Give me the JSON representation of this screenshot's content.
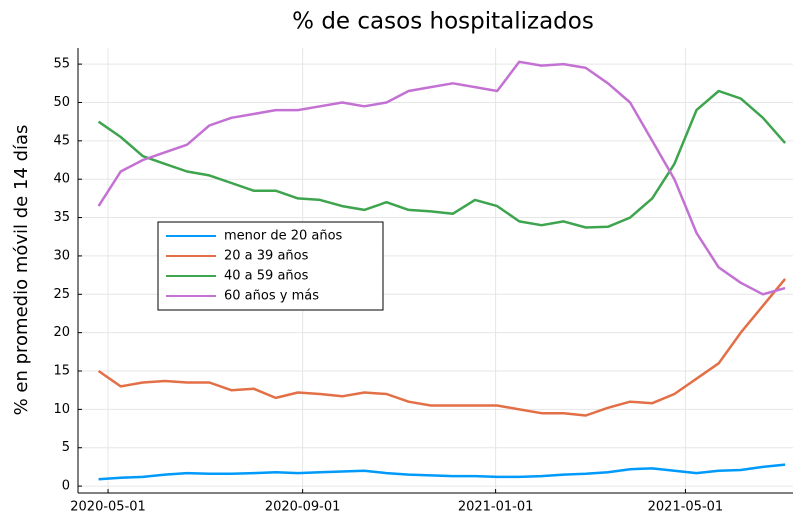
{
  "chart_data": {
    "type": "line",
    "title": "% de casos hospitalizados",
    "y_label": "% en promedio móvil de 14 días",
    "x": [
      "2020-04-25",
      "2020-05-09",
      "2020-05-23",
      "2020-06-06",
      "2020-06-20",
      "2020-07-04",
      "2020-07-18",
      "2020-08-01",
      "2020-08-15",
      "2020-08-29",
      "2020-09-12",
      "2020-09-26",
      "2020-10-10",
      "2020-10-24",
      "2020-11-07",
      "2020-11-21",
      "2020-12-05",
      "2020-12-19",
      "2021-01-02",
      "2021-01-16",
      "2021-01-30",
      "2021-02-13",
      "2021-02-27",
      "2021-03-13",
      "2021-03-27",
      "2021-04-10",
      "2021-04-24",
      "2021-05-08",
      "2021-05-22",
      "2021-06-05",
      "2021-06-19",
      "2021-07-03"
    ],
    "series": [
      {
        "name": "menor de 20 años",
        "color": "#009afa",
        "values": [
          0.9,
          1.1,
          1.2,
          1.5,
          1.7,
          1.6,
          1.6,
          1.7,
          1.8,
          1.7,
          1.8,
          1.9,
          2.0,
          1.7,
          1.5,
          1.4,
          1.3,
          1.3,
          1.2,
          1.2,
          1.3,
          1.5,
          1.6,
          1.8,
          2.2,
          2.3,
          2.0,
          1.7,
          2.0,
          2.1,
          2.5,
          2.8
        ]
      },
      {
        "name": "20 a 39 años",
        "color": "#e36f47",
        "values": [
          15,
          13,
          13.5,
          13.7,
          13.5,
          13.5,
          12.5,
          12.7,
          11.5,
          12.2,
          12,
          11.7,
          12.2,
          12,
          11,
          10.5,
          10.5,
          10.5,
          10.5,
          10,
          9.5,
          9.5,
          9.2,
          10.2,
          11,
          10.8,
          12,
          14,
          16,
          20,
          23.5,
          27
        ]
      },
      {
        "name": "40 a 59 años",
        "color": "#3ea44e",
        "values": [
          47.5,
          45.5,
          43,
          42,
          41,
          40.5,
          39.5,
          38.5,
          38.5,
          37.5,
          37.3,
          36.5,
          36,
          37,
          36,
          35.8,
          35.5,
          37.3,
          36.5,
          34.5,
          34,
          34.5,
          33.7,
          33.8,
          35,
          37.5,
          42,
          49,
          51.5,
          50.5,
          48,
          44.7
        ]
      },
      {
        "name": "60 años y más",
        "color": "#c371d2",
        "values": [
          36.5,
          41,
          42.5,
          43.5,
          44.5,
          47,
          48,
          48.5,
          49,
          49,
          49.5,
          50,
          49.5,
          50,
          51.5,
          52,
          52.5,
          52,
          51.5,
          55.3,
          54.8,
          55,
          54.5,
          52.5,
          50,
          45,
          40,
          33,
          28.5,
          26.5,
          25,
          25.8
        ]
      }
    ],
    "xlim": [
      "2020-04-12",
      "2021-07-08"
    ],
    "xticks": [
      "2020-05-01",
      "2020-09-01",
      "2021-01-01",
      "2021-05-01"
    ],
    "ylim": [
      -0.9,
      57.1
    ],
    "yticks": [
      0,
      5,
      10,
      15,
      20,
      25,
      30,
      35,
      40,
      45,
      50,
      55
    ],
    "grid": true,
    "legend": "left"
  }
}
